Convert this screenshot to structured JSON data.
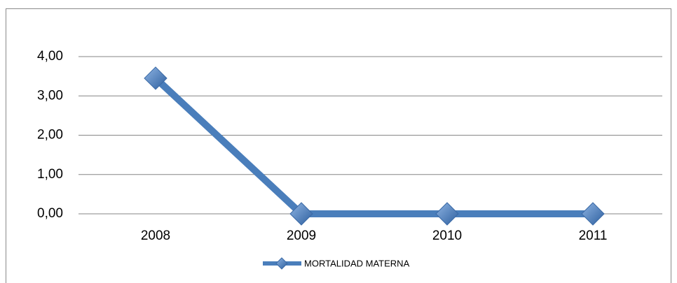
{
  "chart_data": {
    "type": "line",
    "categories": [
      "2008",
      "2009",
      "2010",
      "2011"
    ],
    "series": [
      {
        "name": "MORTALIDAD MATERNA",
        "color": "#4a7ebb",
        "values": [
          3.45,
          0,
          0,
          0
        ]
      }
    ],
    "ylim": [
      0,
      4
    ],
    "yticks": [
      {
        "value": 0,
        "label": "0,00"
      },
      {
        "value": 1,
        "label": "1,00"
      },
      {
        "value": 2,
        "label": "2,00"
      },
      {
        "value": 3,
        "label": "3,00"
      },
      {
        "value": 4,
        "label": "4,00"
      }
    ],
    "grid": true,
    "legend": "bottom"
  }
}
